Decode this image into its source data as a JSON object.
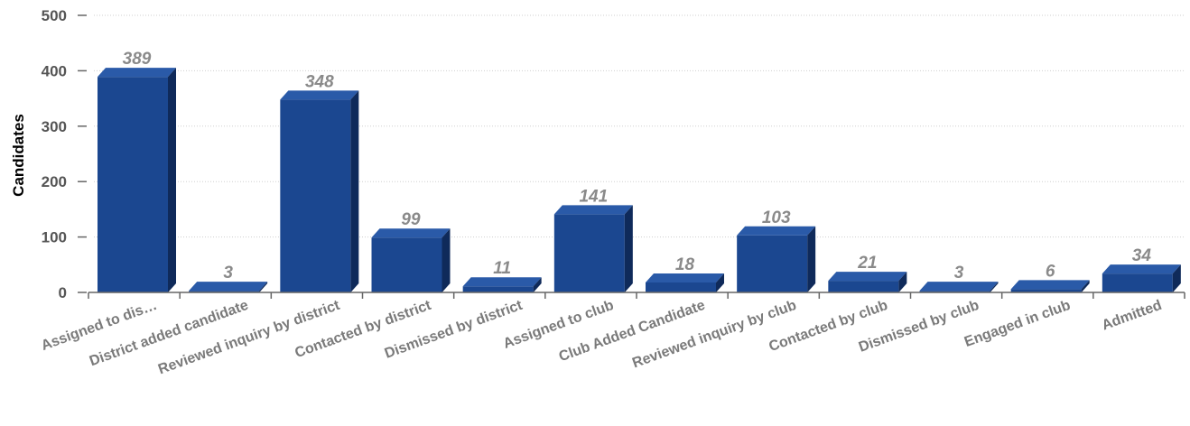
{
  "chart_data": {
    "type": "bar",
    "title": "",
    "xlabel": "",
    "ylabel": "Candidates",
    "ylim": [
      0,
      500
    ],
    "yticks": [
      0,
      100,
      200,
      300,
      400,
      500
    ],
    "grid": true,
    "legend": "none",
    "style": "3d",
    "categories": [
      "Assigned to dis…",
      "District added candidate",
      "Reviewed inquiry by district",
      "Contacted by district",
      "Dismissed by district",
      "Assigned to club",
      "Club Added Candidate",
      "Reviewed inquiry by club",
      "Contacted by club",
      "Dismissed by club",
      "Engaged in club",
      "Admitted"
    ],
    "values": [
      389,
      3,
      348,
      99,
      11,
      141,
      18,
      103,
      21,
      3,
      6,
      34
    ],
    "colors": {
      "bar_front": "#1b4790",
      "bar_top": "#2a5aa8",
      "bar_side": "#0f2a5a",
      "value_label": "#8a8a8a",
      "category_label": "#7a7a7a"
    }
  }
}
